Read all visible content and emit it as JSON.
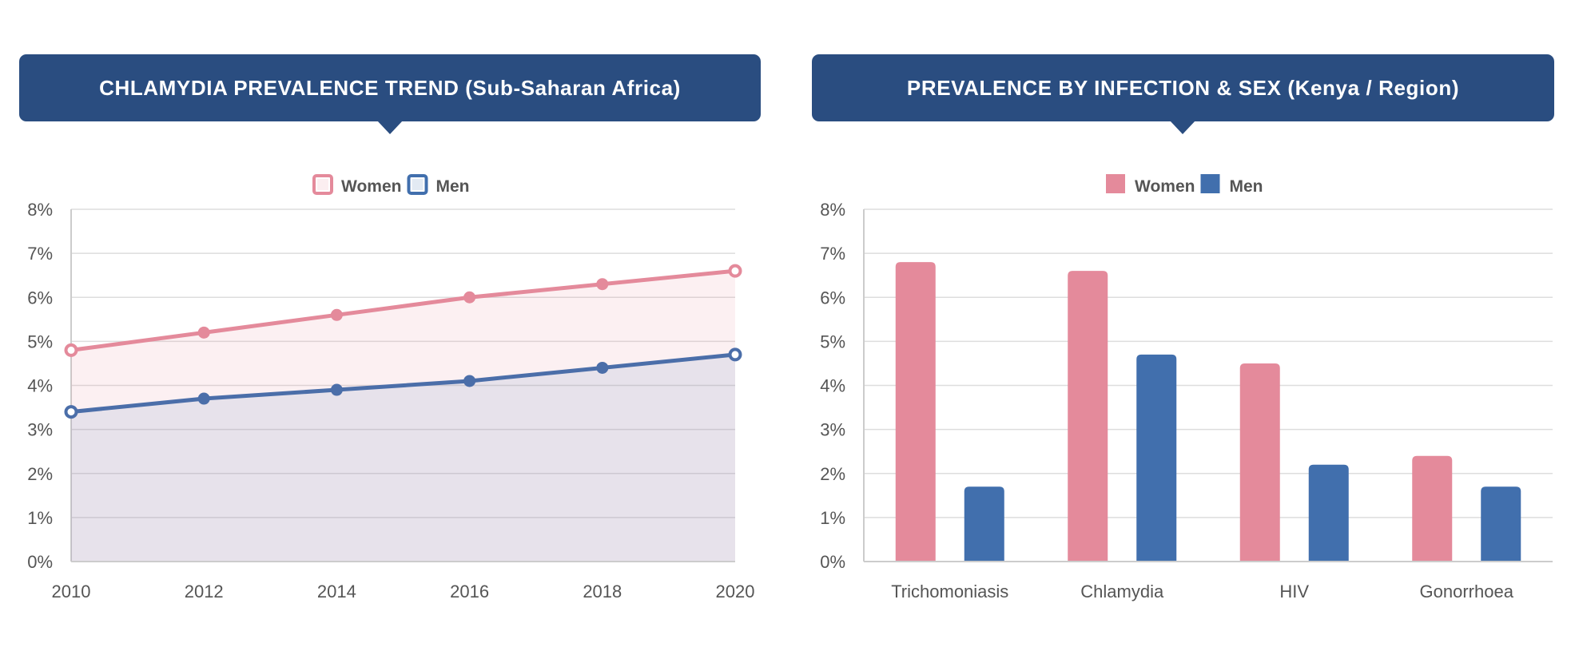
{
  "colors": {
    "banner": "#2a4d80",
    "women": "#e48a9b",
    "men": "#416fad",
    "women_line": "#e48a9b",
    "men_line": "#4b6ea9"
  },
  "chart_data": [
    {
      "type": "area",
      "title": "CHLAMYDIA PREVALENCE TREND (Sub-Saharan Africa)",
      "x": [
        "2010",
        "2012",
        "2014",
        "2016",
        "2018",
        "2020"
      ],
      "series": [
        {
          "name": "Women",
          "values": [
            4.8,
            5.2,
            5.6,
            6.0,
            6.3,
            6.6
          ]
        },
        {
          "name": "Men",
          "values": [
            3.4,
            3.7,
            3.9,
            4.1,
            4.4,
            4.7
          ]
        }
      ],
      "yticks": [
        "0%",
        "1%",
        "2%",
        "3%",
        "4%",
        "5%",
        "6%",
        "7%",
        "8%"
      ],
      "ylim": [
        0,
        8
      ],
      "grid": true,
      "legend": "top-center"
    },
    {
      "type": "bar",
      "title": "PREVALENCE BY INFECTION & SEX (Kenya / Region)",
      "categories": [
        "Trichomoniasis",
        "Chlamydia",
        "HIV",
        "Gonorrhoea"
      ],
      "series": [
        {
          "name": "Women",
          "values": [
            6.8,
            6.6,
            4.5,
            2.4
          ]
        },
        {
          "name": "Men",
          "values": [
            1.7,
            4.7,
            2.2,
            1.7
          ]
        }
      ],
      "yticks": [
        "0%",
        "1%",
        "2%",
        "3%",
        "4%",
        "5%",
        "6%",
        "7%",
        "8%"
      ],
      "ylim": [
        0,
        8
      ],
      "grid": true,
      "legend": "top-center"
    }
  ]
}
